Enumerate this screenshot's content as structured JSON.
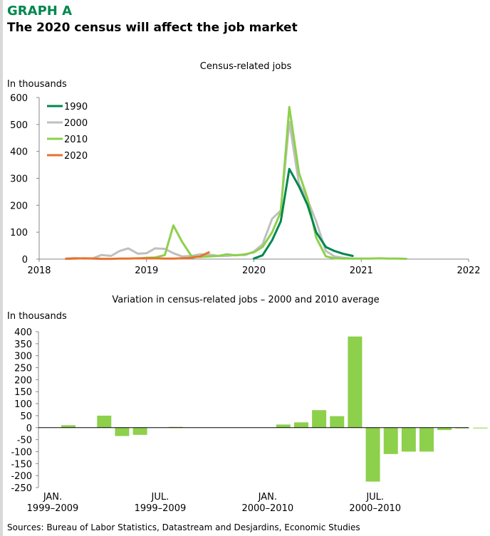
{
  "header": {
    "graph_label": "GRAPH A",
    "title": "The 2020 census will affect the job market"
  },
  "footer": {
    "sources": "Sources: Bureau of Labor Statistics, Datastream and Desjardins, Economic Studies"
  },
  "chart_data": [
    {
      "type": "line",
      "title": "Census-related jobs",
      "ylabel": "In thousands",
      "xlabel": "",
      "xlim": [
        2018,
        2022
      ],
      "ylim": [
        0,
        600
      ],
      "x_ticks": [
        "2018",
        "2019",
        "2020",
        "2021",
        "2022"
      ],
      "y_ticks": [
        "0",
        "100",
        "200",
        "300",
        "400",
        "500",
        "600"
      ],
      "legend": "top-left",
      "grid": false,
      "series": [
        {
          "name": "1990",
          "color": "#00874e",
          "points": [
            [
              2020.0,
              2
            ],
            [
              2020.08,
              14
            ],
            [
              2020.17,
              70
            ],
            [
              2020.25,
              140
            ],
            [
              2020.33,
              335
            ],
            [
              2020.42,
              270
            ],
            [
              2020.5,
              200
            ],
            [
              2020.58,
              100
            ],
            [
              2020.67,
              45
            ],
            [
              2020.75,
              30
            ],
            [
              2020.83,
              20
            ],
            [
              2020.92,
              12
            ]
          ]
        },
        {
          "name": "2000",
          "color": "#bfbfbf",
          "points": [
            [
              2018.25,
              2
            ],
            [
              2018.33,
              4
            ],
            [
              2018.42,
              2
            ],
            [
              2018.5,
              3
            ],
            [
              2018.58,
              15
            ],
            [
              2018.67,
              12
            ],
            [
              2018.75,
              30
            ],
            [
              2018.83,
              40
            ],
            [
              2018.92,
              20
            ],
            [
              2019.0,
              22
            ],
            [
              2019.08,
              40
            ],
            [
              2019.17,
              38
            ],
            [
              2019.25,
              22
            ],
            [
              2019.33,
              10
            ],
            [
              2019.42,
              12
            ],
            [
              2019.5,
              18
            ],
            [
              2019.58,
              17
            ],
            [
              2019.67,
              12
            ],
            [
              2019.75,
              12
            ],
            [
              2019.83,
              15
            ],
            [
              2019.92,
              15
            ],
            [
              2020.0,
              28
            ],
            [
              2020.08,
              55
            ],
            [
              2020.17,
              150
            ],
            [
              2020.25,
              180
            ],
            [
              2020.33,
              510
            ],
            [
              2020.42,
              280
            ],
            [
              2020.5,
              220
            ],
            [
              2020.58,
              140
            ],
            [
              2020.67,
              30
            ],
            [
              2020.75,
              10
            ],
            [
              2020.83,
              5
            ],
            [
              2020.92,
              2
            ]
          ]
        },
        {
          "name": "2010",
          "color": "#8dd04c",
          "points": [
            [
              2018.92,
              2
            ],
            [
              2019.0,
              5
            ],
            [
              2019.08,
              6
            ],
            [
              2019.17,
              15
            ],
            [
              2019.25,
              125
            ],
            [
              2019.33,
              65
            ],
            [
              2019.42,
              10
            ],
            [
              2019.5,
              8
            ],
            [
              2019.58,
              10
            ],
            [
              2019.67,
              12
            ],
            [
              2019.75,
              18
            ],
            [
              2019.83,
              14
            ],
            [
              2019.92,
              18
            ],
            [
              2020.0,
              25
            ],
            [
              2020.08,
              45
            ],
            [
              2020.17,
              100
            ],
            [
              2020.25,
              175
            ],
            [
              2020.33,
              565
            ],
            [
              2020.42,
              320
            ],
            [
              2020.5,
              225
            ],
            [
              2020.58,
              80
            ],
            [
              2020.67,
              10
            ],
            [
              2020.75,
              3
            ],
            [
              2020.83,
              2
            ],
            [
              2020.92,
              2
            ],
            [
              2021.0,
              2
            ],
            [
              2021.08,
              2
            ],
            [
              2021.17,
              3
            ],
            [
              2021.25,
              2
            ],
            [
              2021.33,
              2
            ],
            [
              2021.42,
              1
            ]
          ]
        },
        {
          "name": "2020",
          "color": "#e8722c",
          "points": [
            [
              2018.25,
              1
            ],
            [
              2018.33,
              2
            ],
            [
              2018.42,
              3
            ],
            [
              2018.5,
              2
            ],
            [
              2018.58,
              1
            ],
            [
              2018.67,
              1
            ],
            [
              2018.75,
              2
            ],
            [
              2018.83,
              2
            ],
            [
              2018.92,
              3
            ],
            [
              2019.0,
              3
            ],
            [
              2019.08,
              3
            ],
            [
              2019.17,
              2
            ],
            [
              2019.25,
              2
            ],
            [
              2019.33,
              3
            ],
            [
              2019.42,
              5
            ],
            [
              2019.5,
              10
            ],
            [
              2019.58,
              25
            ]
          ]
        }
      ]
    },
    {
      "type": "bar",
      "title": "Variation in census-related jobs – 2000 and 2010 average",
      "ylabel": "In thousands",
      "xlabel": "",
      "ylim": [
        -250,
        400
      ],
      "y_ticks": [
        "400",
        "350",
        "300",
        "250",
        "200",
        "150",
        "100",
        "50",
        "0",
        "-50",
        "-100",
        "-150",
        "-200",
        "-250"
      ],
      "x_tick_labels": [
        {
          "line1": "JAN.",
          "line2": "1999–2009",
          "slot": 0
        },
        {
          "line1": "JUL.",
          "line2": "1999–2009",
          "slot": 6
        },
        {
          "line1": "JAN.",
          "line2": "2000–2010",
          "slot": 12
        },
        {
          "line1": "JUL.",
          "line2": "2000–2010",
          "slot": 18
        }
      ],
      "color": "#8dd04c",
      "grid": false,
      "values": [
        10,
        0,
        50,
        -35,
        -30,
        0,
        3,
        0,
        0,
        0,
        0,
        0,
        13,
        22,
        73,
        48,
        380,
        -225,
        -110,
        -100,
        -100,
        -10,
        -3,
        -3
      ]
    }
  ]
}
